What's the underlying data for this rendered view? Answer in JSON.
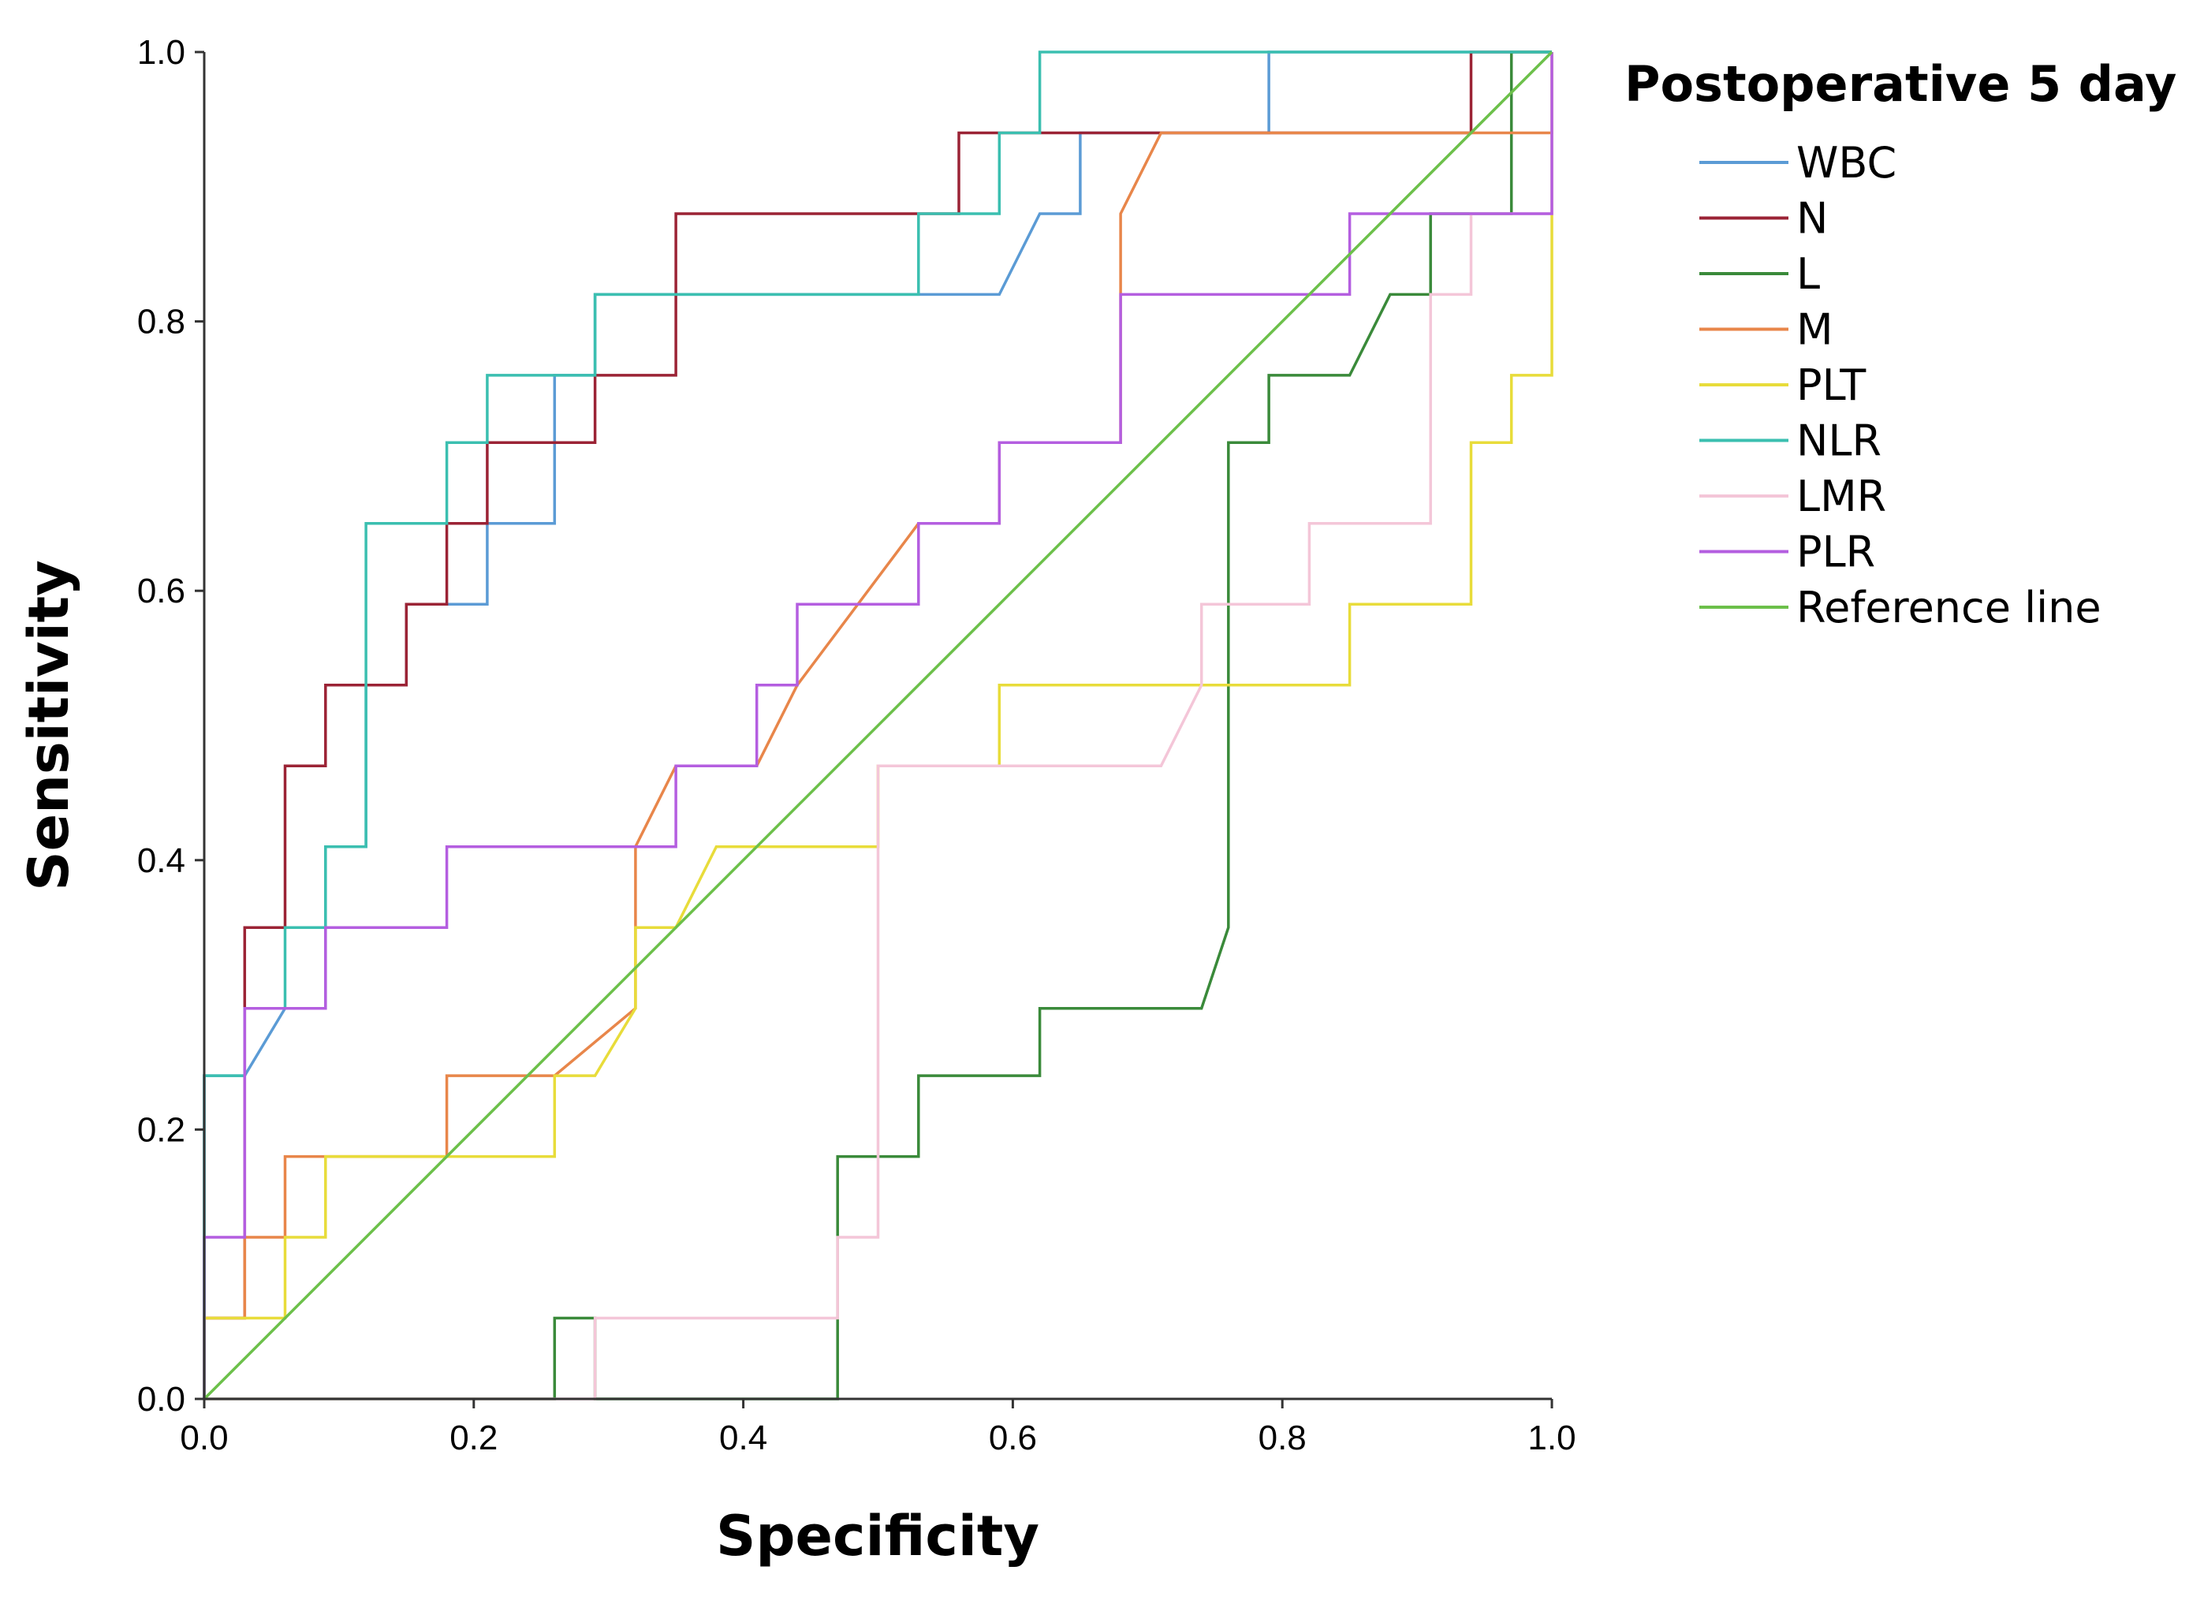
{
  "chart_data": {
    "type": "line",
    "legend_title": "Postoperative 5 day",
    "xlabel": "Specificity",
    "ylabel": "Sensitivity",
    "xlim": [
      0,
      1
    ],
    "ylim": [
      0,
      1
    ],
    "x_ticks": [
      "0.0",
      "0.2",
      "0.4",
      "0.6",
      "0.8",
      "1.0"
    ],
    "y_ticks": [
      "0.0",
      "0.2",
      "0.4",
      "0.6",
      "0.8",
      "1.0"
    ],
    "grid": false,
    "legend_position": "right",
    "series": [
      {
        "name": "WBC",
        "color": "#5b9bd5",
        "points": [
          [
            0,
            0
          ],
          [
            0,
            0.24
          ],
          [
            0.03,
            0.24
          ],
          [
            0.06,
            0.29
          ],
          [
            0.09,
            0.29
          ],
          [
            0.09,
            0.35
          ],
          [
            0.09,
            0.41
          ],
          [
            0.12,
            0.41
          ],
          [
            0.12,
            0.47
          ],
          [
            0.12,
            0.53
          ],
          [
            0.15,
            0.53
          ],
          [
            0.15,
            0.59
          ],
          [
            0.21,
            0.59
          ],
          [
            0.21,
            0.65
          ],
          [
            0.26,
            0.65
          ],
          [
            0.26,
            0.71
          ],
          [
            0.26,
            0.76
          ],
          [
            0.29,
            0.76
          ],
          [
            0.29,
            0.82
          ],
          [
            0.59,
            0.82
          ],
          [
            0.62,
            0.88
          ],
          [
            0.65,
            0.88
          ],
          [
            0.65,
            0.94
          ],
          [
            0.79,
            0.94
          ],
          [
            0.79,
            1.0
          ],
          [
            1.0,
            1.0
          ]
        ]
      },
      {
        "name": "N",
        "color": "#9b2335",
        "points": [
          [
            0,
            0
          ],
          [
            0,
            0.06
          ],
          [
            0.03,
            0.06
          ],
          [
            0.03,
            0.35
          ],
          [
            0.06,
            0.35
          ],
          [
            0.06,
            0.47
          ],
          [
            0.09,
            0.47
          ],
          [
            0.09,
            0.53
          ],
          [
            0.15,
            0.53
          ],
          [
            0.15,
            0.59
          ],
          [
            0.18,
            0.59
          ],
          [
            0.18,
            0.65
          ],
          [
            0.21,
            0.65
          ],
          [
            0.21,
            0.71
          ],
          [
            0.29,
            0.71
          ],
          [
            0.29,
            0.76
          ],
          [
            0.35,
            0.76
          ],
          [
            0.35,
            0.88
          ],
          [
            0.56,
            0.88
          ],
          [
            0.56,
            0.94
          ],
          [
            0.94,
            0.94
          ],
          [
            0.94,
            1.0
          ],
          [
            1.0,
            1.0
          ]
        ]
      },
      {
        "name": "L",
        "color": "#3a8a3a",
        "points": [
          [
            0,
            0
          ],
          [
            0.26,
            0
          ],
          [
            0.26,
            0.06
          ],
          [
            0.29,
            0.06
          ],
          [
            0.29,
            0
          ],
          [
            0.47,
            0
          ],
          [
            0.47,
            0.12
          ],
          [
            0.47,
            0.18
          ],
          [
            0.53,
            0.18
          ],
          [
            0.53,
            0.24
          ],
          [
            0.62,
            0.24
          ],
          [
            0.62,
            0.29
          ],
          [
            0.74,
            0.29
          ],
          [
            0.76,
            0.35
          ],
          [
            0.76,
            0.71
          ],
          [
            0.79,
            0.71
          ],
          [
            0.79,
            0.76
          ],
          [
            0.85,
            0.76
          ],
          [
            0.88,
            0.82
          ],
          [
            0.91,
            0.82
          ],
          [
            0.91,
            0.88
          ],
          [
            0.97,
            0.88
          ],
          [
            0.97,
            1.0
          ],
          [
            1.0,
            1.0
          ]
        ]
      },
      {
        "name": "M",
        "color": "#e8864a",
        "points": [
          [
            0,
            0
          ],
          [
            0,
            0.06
          ],
          [
            0.03,
            0.06
          ],
          [
            0.03,
            0.12
          ],
          [
            0.06,
            0.12
          ],
          [
            0.06,
            0.18
          ],
          [
            0.18,
            0.18
          ],
          [
            0.18,
            0.24
          ],
          [
            0.26,
            0.24
          ],
          [
            0.32,
            0.29
          ],
          [
            0.32,
            0.41
          ],
          [
            0.35,
            0.47
          ],
          [
            0.41,
            0.47
          ],
          [
            0.44,
            0.53
          ],
          [
            0.53,
            0.65
          ],
          [
            0.59,
            0.65
          ],
          [
            0.59,
            0.71
          ],
          [
            0.68,
            0.71
          ],
          [
            0.68,
            0.88
          ],
          [
            0.71,
            0.94
          ],
          [
            0.94,
            0.94
          ],
          [
            1.0,
            0.94
          ],
          [
            1.0,
            1.0
          ]
        ]
      },
      {
        "name": "PLT",
        "color": "#e8dc3a",
        "points": [
          [
            0,
            0
          ],
          [
            0,
            0.06
          ],
          [
            0.06,
            0.06
          ],
          [
            0.06,
            0.12
          ],
          [
            0.09,
            0.12
          ],
          [
            0.09,
            0.18
          ],
          [
            0.26,
            0.18
          ],
          [
            0.26,
            0.24
          ],
          [
            0.29,
            0.24
          ],
          [
            0.32,
            0.29
          ],
          [
            0.32,
            0.35
          ],
          [
            0.35,
            0.35
          ],
          [
            0.38,
            0.41
          ],
          [
            0.5,
            0.41
          ],
          [
            0.5,
            0.47
          ],
          [
            0.59,
            0.47
          ],
          [
            0.59,
            0.53
          ],
          [
            0.85,
            0.53
          ],
          [
            0.85,
            0.59
          ],
          [
            0.94,
            0.59
          ],
          [
            0.94,
            0.71
          ],
          [
            0.97,
            0.71
          ],
          [
            0.97,
            0.76
          ],
          [
            1.0,
            0.76
          ],
          [
            1.0,
            0.88
          ],
          [
            1.0,
            1.0
          ]
        ]
      },
      {
        "name": "NLR",
        "color": "#3bbfb0",
        "points": [
          [
            0,
            0
          ],
          [
            0,
            0.24
          ],
          [
            0.03,
            0.24
          ],
          [
            0.03,
            0.29
          ],
          [
            0.06,
            0.29
          ],
          [
            0.06,
            0.35
          ],
          [
            0.09,
            0.35
          ],
          [
            0.09,
            0.41
          ],
          [
            0.12,
            0.41
          ],
          [
            0.12,
            0.65
          ],
          [
            0.18,
            0.65
          ],
          [
            0.18,
            0.71
          ],
          [
            0.21,
            0.71
          ],
          [
            0.21,
            0.76
          ],
          [
            0.29,
            0.76
          ],
          [
            0.29,
            0.82
          ],
          [
            0.53,
            0.82
          ],
          [
            0.53,
            0.88
          ],
          [
            0.59,
            0.88
          ],
          [
            0.59,
            0.94
          ],
          [
            0.62,
            0.94
          ],
          [
            0.62,
            1.0
          ],
          [
            1.0,
            1.0
          ]
        ]
      },
      {
        "name": "LMR",
        "color": "#f4c6d8",
        "points": [
          [
            0,
            0
          ],
          [
            0.29,
            0
          ],
          [
            0.29,
            0.06
          ],
          [
            0.47,
            0.06
          ],
          [
            0.47,
            0.12
          ],
          [
            0.5,
            0.12
          ],
          [
            0.5,
            0.41
          ],
          [
            0.5,
            0.47
          ],
          [
            0.71,
            0.47
          ],
          [
            0.74,
            0.53
          ],
          [
            0.74,
            0.59
          ],
          [
            0.82,
            0.59
          ],
          [
            0.82,
            0.65
          ],
          [
            0.91,
            0.65
          ],
          [
            0.91,
            0.82
          ],
          [
            0.94,
            0.82
          ],
          [
            0.94,
            0.88
          ],
          [
            1.0,
            0.88
          ],
          [
            1.0,
            0.94
          ],
          [
            1.0,
            1.0
          ]
        ]
      },
      {
        "name": "PLR",
        "color": "#b45ee0",
        "points": [
          [
            0,
            0
          ],
          [
            0,
            0.12
          ],
          [
            0.03,
            0.12
          ],
          [
            0.03,
            0.29
          ],
          [
            0.09,
            0.29
          ],
          [
            0.09,
            0.35
          ],
          [
            0.18,
            0.35
          ],
          [
            0.18,
            0.41
          ],
          [
            0.35,
            0.41
          ],
          [
            0.35,
            0.47
          ],
          [
            0.41,
            0.47
          ],
          [
            0.41,
            0.53
          ],
          [
            0.44,
            0.53
          ],
          [
            0.44,
            0.59
          ],
          [
            0.53,
            0.59
          ],
          [
            0.53,
            0.65
          ],
          [
            0.59,
            0.65
          ],
          [
            0.59,
            0.71
          ],
          [
            0.68,
            0.71
          ],
          [
            0.68,
            0.82
          ],
          [
            0.85,
            0.82
          ],
          [
            0.85,
            0.88
          ],
          [
            1.0,
            0.88
          ],
          [
            1.0,
            1.0
          ]
        ]
      },
      {
        "name": "Reference line",
        "color": "#6cc04a",
        "points": [
          [
            0,
            0
          ],
          [
            1.0,
            1.0
          ]
        ]
      }
    ]
  }
}
